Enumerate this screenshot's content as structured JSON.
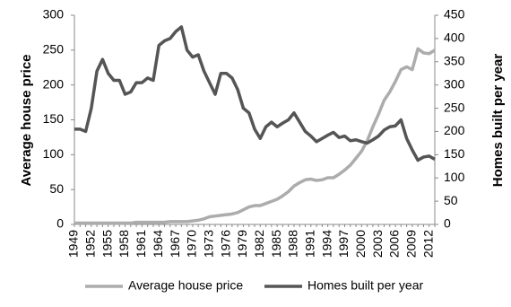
{
  "chart_data": {
    "type": "line",
    "y_label": "Average house price",
    "y2_label": "Homes built per year",
    "categories": [
      "1949",
      null,
      null,
      "1952",
      null,
      null,
      "1955",
      null,
      null,
      "1958",
      null,
      null,
      "1961",
      null,
      null,
      "1964",
      null,
      null,
      "1967",
      null,
      null,
      "1970",
      null,
      null,
      "1973",
      null,
      null,
      "1976",
      null,
      null,
      "1979",
      null,
      null,
      "1982",
      null,
      null,
      "1985",
      null,
      null,
      "1988",
      null,
      null,
      "1991",
      null,
      null,
      "1994",
      null,
      null,
      "1997",
      null,
      null,
      "2000",
      null,
      null,
      "2003",
      null,
      null,
      "2006",
      null,
      null,
      "2009",
      null,
      null,
      "2012",
      null
    ],
    "series": [
      {
        "name": "Average house price",
        "color": "#acacac",
        "axis": "y",
        "values": [
          2,
          2,
          2,
          2,
          2,
          2,
          2,
          2,
          2,
          2,
          2,
          3,
          3,
          3,
          3,
          3,
          3,
          4,
          4,
          4,
          4,
          5,
          6,
          8,
          11,
          12,
          13,
          14,
          15,
          17,
          21,
          25,
          27,
          27,
          30,
          33,
          36,
          41,
          47,
          55,
          60,
          64,
          65,
          63,
          64,
          67,
          67,
          72,
          78,
          85,
          95,
          105,
          120,
          140,
          158,
          178,
          190,
          205,
          222,
          226,
          222,
          252,
          246,
          245,
          250
        ]
      },
      {
        "name": "Homes built per year",
        "color": "#555555",
        "axis": "y2",
        "values": [
          205,
          205,
          200,
          250,
          330,
          355,
          325,
          310,
          310,
          280,
          285,
          305,
          305,
          315,
          310,
          385,
          395,
          400,
          415,
          425,
          375,
          360,
          365,
          330,
          305,
          280,
          325,
          325,
          315,
          290,
          250,
          240,
          205,
          185,
          210,
          220,
          210,
          218,
          225,
          240,
          220,
          200,
          190,
          178,
          185,
          192,
          198,
          187,
          190,
          180,
          182,
          178,
          175,
          182,
          190,
          203,
          210,
          212,
          225,
          185,
          160,
          138,
          145,
          147,
          140
        ]
      }
    ],
    "ylim": [
      0,
      300
    ],
    "yticks": [
      0,
      50,
      100,
      150,
      200,
      250,
      300
    ],
    "y2lim": [
      0,
      450
    ],
    "y2ticks": [
      0,
      50,
      100,
      150,
      200,
      250,
      300,
      350,
      400,
      450
    ],
    "grid": false,
    "legend": "bottom"
  }
}
